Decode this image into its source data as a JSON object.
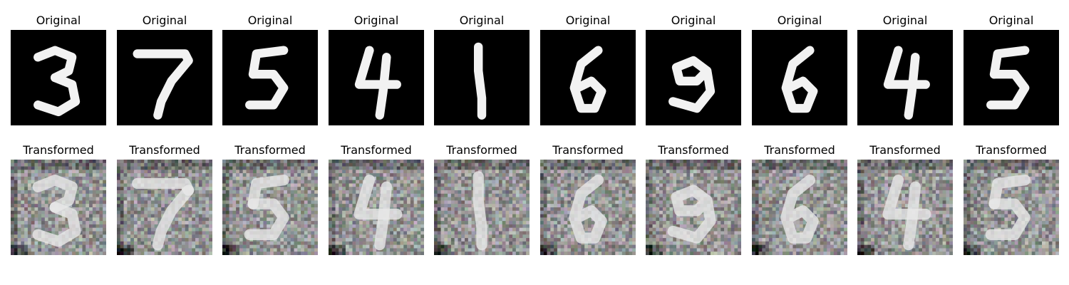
{
  "figure": {
    "original_label": "Original",
    "transformed_label": "Transformed",
    "digits": [
      "3",
      "7",
      "5",
      "4",
      "1",
      "6",
      "9",
      "6",
      "4",
      "5"
    ]
  },
  "colors": {
    "background": "#ffffff",
    "original_background": "#000000",
    "original_stroke": "#f2f2f2",
    "transformed_background": "#9a9a9a",
    "transformed_stroke": "#e8e8e8",
    "transformed_dark": "#2a2a2a"
  }
}
